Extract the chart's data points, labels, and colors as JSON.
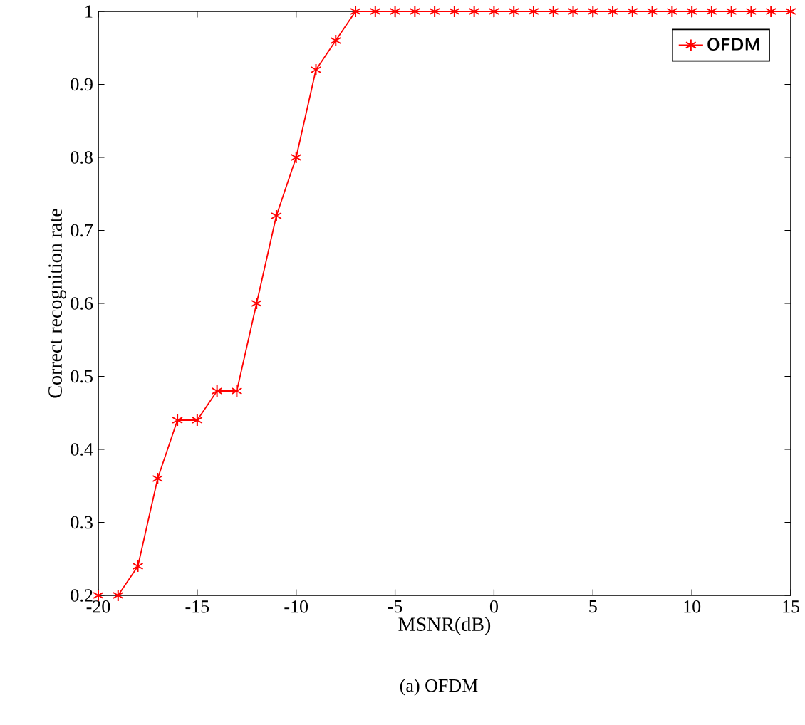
{
  "chart_data": {
    "type": "line",
    "xlabel": "MSNR(dB)",
    "ylabel": "Correct recognition rate",
    "annotations": [
      "(a) OFDM"
    ],
    "x": [
      -20,
      -19,
      -18,
      -17,
      -16,
      -15,
      -14,
      -13,
      -12,
      -11,
      -10,
      -9,
      -8,
      -7,
      -6,
      -5,
      -4,
      -3,
      -2,
      -1,
      0,
      1,
      2,
      3,
      4,
      5,
      6,
      7,
      8,
      9,
      10,
      11,
      12,
      13,
      14,
      15
    ],
    "series": [
      {
        "name": "OFDM",
        "color": "#ff0000",
        "values": [
          0.2,
          0.2,
          0.24,
          0.36,
          0.44,
          0.44,
          0.48,
          0.48,
          0.6,
          0.72,
          0.8,
          0.92,
          0.96,
          1,
          1,
          1,
          1,
          1,
          1,
          1,
          1,
          1,
          1,
          1,
          1,
          1,
          1,
          1,
          1,
          1,
          1,
          1,
          1,
          1,
          1,
          1
        ]
      }
    ],
    "xlim": [
      -20,
      15
    ],
    "ylim": [
      0.2,
      1
    ],
    "xticks": [
      -20,
      -15,
      -10,
      -5,
      0,
      5,
      10,
      15
    ],
    "yticks": [
      0.2,
      0.3,
      0.4,
      0.5,
      0.6,
      0.7,
      0.8,
      0.9,
      1
    ],
    "grid": false,
    "legend": "top right",
    "marker": "cross",
    "line_style": "solid"
  }
}
